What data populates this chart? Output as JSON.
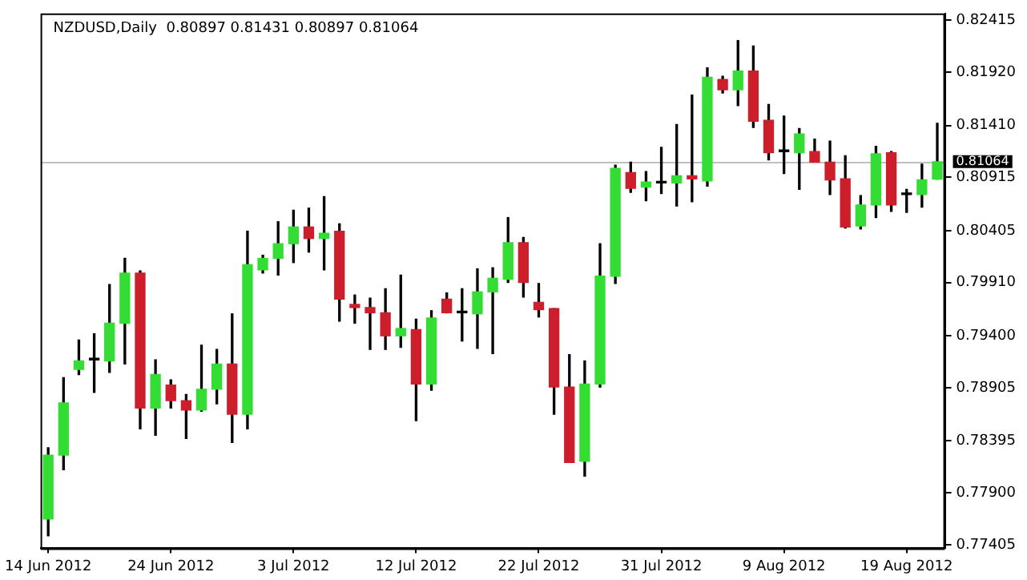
{
  "chart_data": {
    "type": "candlestick",
    "title": "NZDUSD,Daily  0.80897 0.81431 0.80897 0.81064",
    "categories": [
      "14 Jun 2012",
      null,
      null,
      null,
      null,
      null,
      null,
      null,
      "24 Jun 2012",
      null,
      null,
      null,
      null,
      null,
      null,
      null,
      "3 Jul 2012",
      null,
      null,
      null,
      null,
      null,
      null,
      null,
      "12 Jul 2012",
      null,
      null,
      null,
      null,
      null,
      null,
      null,
      "22 Jul 2012",
      null,
      null,
      null,
      null,
      null,
      null,
      null,
      "31 Jul 2012",
      null,
      null,
      null,
      null,
      null,
      null,
      null,
      "9 Aug 2012",
      null,
      null,
      null,
      null,
      null,
      null,
      null,
      "19 Aug 2012",
      null,
      null
    ],
    "ohlc": [
      [
        0.7765,
        0.7833,
        0.7749,
        0.7826
      ],
      [
        0.7826,
        0.79,
        0.7812,
        0.7876
      ],
      [
        0.7908,
        0.7936,
        0.7903,
        0.7916
      ],
      [
        0.7917,
        0.7942,
        0.7886,
        0.7917
      ],
      [
        0.7916,
        0.7989,
        0.7905,
        0.7952
      ],
      [
        0.7952,
        0.8014,
        0.7913,
        0.8
      ],
      [
        0.8,
        0.8002,
        0.7851,
        0.7871
      ],
      [
        0.7871,
        0.7917,
        0.7845,
        0.7903
      ],
      [
        0.7893,
        0.7898,
        0.7871,
        0.7878
      ],
      [
        0.7878,
        0.7884,
        0.7842,
        0.7869
      ],
      [
        0.7869,
        0.7931,
        0.7868,
        0.7889
      ],
      [
        0.7889,
        0.7927,
        0.7875,
        0.7913
      ],
      [
        0.7913,
        0.7961,
        0.7838,
        0.7865
      ],
      [
        0.7865,
        0.804,
        0.7851,
        0.8008
      ],
      [
        0.8003,
        0.8017,
        0.8,
        0.8014
      ],
      [
        0.8014,
        0.8049,
        0.7998,
        0.8028
      ],
      [
        0.8028,
        0.806,
        0.801,
        0.8044
      ],
      [
        0.8044,
        0.8062,
        0.802,
        0.8033
      ],
      [
        0.8033,
        0.8073,
        0.8003,
        0.8038
      ],
      [
        0.804,
        0.8047,
        0.7954,
        0.7975
      ],
      [
        0.797,
        0.7979,
        0.7952,
        0.7967
      ],
      [
        0.7967,
        0.7976,
        0.7927,
        0.7962
      ],
      [
        0.7962,
        0.7985,
        0.7927,
        0.794
      ],
      [
        0.794,
        0.7998,
        0.7929,
        0.7947
      ],
      [
        0.7946,
        0.7956,
        0.7859,
        0.7894
      ],
      [
        0.7894,
        0.7964,
        0.7888,
        0.7957
      ],
      [
        0.7975,
        0.7981,
        0.7962,
        0.7962
      ],
      [
        0.7962,
        0.7985,
        0.7935,
        0.7962
      ],
      [
        0.7961,
        0.8004,
        0.7928,
        0.7982
      ],
      [
        0.7982,
        0.8005,
        0.7923,
        0.7995
      ],
      [
        0.7994,
        0.8053,
        0.7991,
        0.8029
      ],
      [
        0.8029,
        0.8034,
        0.7977,
        0.7991
      ],
      [
        0.7972,
        0.799,
        0.7958,
        0.7965
      ],
      [
        0.7966,
        0.7966,
        0.7865,
        0.7891
      ],
      [
        0.7891,
        0.7922,
        0.7819,
        0.7819
      ],
      [
        0.782,
        0.7916,
        0.7806,
        0.7894
      ],
      [
        0.7894,
        0.8028,
        0.7891,
        0.7997
      ],
      [
        0.7997,
        0.8103,
        0.799,
        0.81
      ],
      [
        0.8096,
        0.8106,
        0.8077,
        0.8081
      ],
      [
        0.8082,
        0.8097,
        0.8069,
        0.8087
      ],
      [
        0.8086,
        0.812,
        0.8076,
        0.8086
      ],
      [
        0.8086,
        0.8142,
        0.8064,
        0.8093
      ],
      [
        0.8093,
        0.817,
        0.8068,
        0.809
      ],
      [
        0.8088,
        0.8196,
        0.8083,
        0.8187
      ],
      [
        0.8185,
        0.8188,
        0.8172,
        0.8175
      ],
      [
        0.8175,
        0.8222,
        0.816,
        0.8193
      ],
      [
        0.8193,
        0.8217,
        0.8139,
        0.8145
      ],
      [
        0.8146,
        0.8161,
        0.8108,
        0.8115
      ],
      [
        0.8116,
        0.815,
        0.8095,
        0.8116
      ],
      [
        0.8115,
        0.8138,
        0.808,
        0.8133
      ],
      [
        0.8116,
        0.8128,
        0.8106,
        0.8106
      ],
      [
        0.8106,
        0.8126,
        0.8075,
        0.8089
      ],
      [
        0.809,
        0.8112,
        0.8043,
        0.8044
      ],
      [
        0.8045,
        0.8074,
        0.8042,
        0.8065
      ],
      [
        0.8065,
        0.8121,
        0.8053,
        0.8114
      ],
      [
        0.8115,
        0.8116,
        0.8059,
        0.8065
      ],
      [
        0.8075,
        0.808,
        0.8058,
        0.8075
      ],
      [
        0.8075,
        0.8104,
        0.8063,
        0.8089
      ],
      [
        0.80897,
        0.81431,
        0.80897,
        0.81064
      ]
    ],
    "colors": [
      "#33dd33",
      "#33dd33",
      "#33dd33",
      "#000000",
      "#33dd33",
      "#33dd33",
      "#cc1f2b",
      "#33dd33",
      "#cc1f2b",
      "#cc1f2b",
      "#33dd33",
      "#33dd33",
      "#cc1f2b",
      "#33dd33",
      "#33dd33",
      "#33dd33",
      "#33dd33",
      "#cc1f2b",
      "#33dd33",
      "#cc1f2b",
      "#cc1f2b",
      "#cc1f2b",
      "#cc1f2b",
      "#33dd33",
      "#cc1f2b",
      "#33dd33",
      "#cc1f2b",
      "#000000",
      "#33dd33",
      "#33dd33",
      "#33dd33",
      "#cc1f2b",
      "#cc1f2b",
      "#cc1f2b",
      "#cc1f2b",
      "#33dd33",
      "#33dd33",
      "#33dd33",
      "#cc1f2b",
      "#33dd33",
      "#000000",
      "#33dd33",
      "#cc1f2b",
      "#33dd33",
      "#cc1f2b",
      "#33dd33",
      "#cc1f2b",
      "#cc1f2b",
      "#000000",
      "#33dd33",
      "#cc1f2b",
      "#cc1f2b",
      "#cc1f2b",
      "#33dd33",
      "#33dd33",
      "#cc1f2b",
      "#000000",
      "#33dd33",
      "#33dd33"
    ],
    "ylim": [
      0.7737,
      0.8248
    ],
    "yticks": [
      {
        "value": 0.82415,
        "label": "0.82415"
      },
      {
        "value": 0.8192,
        "label": "0.81920"
      },
      {
        "value": 0.8141,
        "label": "0.81410"
      },
      {
        "value": 0.80915,
        "label": "0.80915"
      },
      {
        "value": 0.80405,
        "label": "0.80405"
      },
      {
        "value": 0.7991,
        "label": "0.79910"
      },
      {
        "value": 0.794,
        "label": "0.79400"
      },
      {
        "value": 0.78905,
        "label": "0.78905"
      },
      {
        "value": 0.78395,
        "label": "0.78395"
      },
      {
        "value": 0.779,
        "label": "0.77900"
      },
      {
        "value": 0.77405,
        "label": "0.77405"
      }
    ],
    "ref_lines": [
      {
        "axis": "y",
        "value": 0.81064,
        "label": "0.81064",
        "color": "#c0c0c0"
      }
    ]
  }
}
